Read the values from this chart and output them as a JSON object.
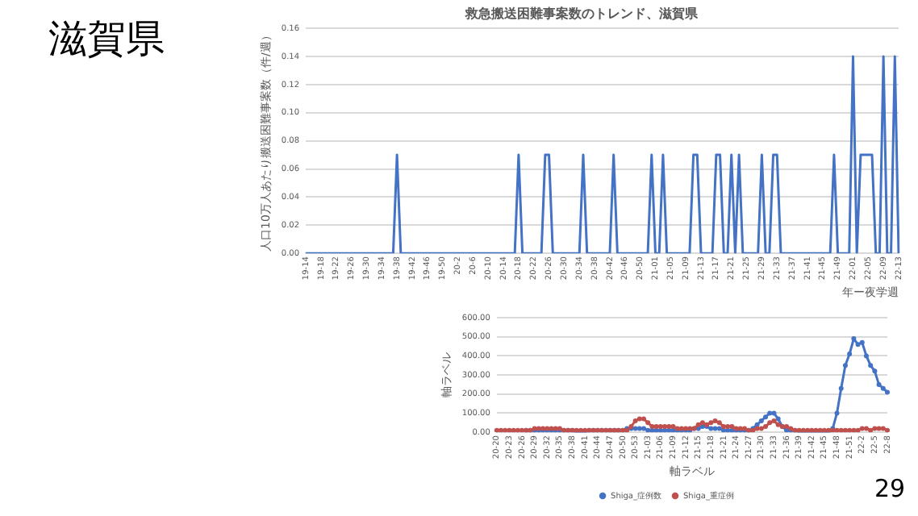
{
  "chart_data": [
    {
      "type": "line",
      "title": "救急搬送困難事案数のトレンド、滋賀県",
      "xlabel": "年ー夜学週",
      "ylabel": "人口10万人あたり搬送困難事案数（件/週）",
      "annotations": [
        "滋賀県"
      ],
      "categories": [
        "19-14",
        null,
        null,
        null,
        "19-18",
        null,
        null,
        null,
        "19-22",
        null,
        null,
        null,
        "19-26",
        null,
        null,
        null,
        "19-30",
        null,
        null,
        null,
        "19-34",
        null,
        null,
        null,
        "19-38",
        null,
        null,
        null,
        "19-42",
        null,
        null,
        null,
        "19-46",
        null,
        null,
        null,
        "19-50",
        null,
        null,
        null,
        "20-2",
        null,
        null,
        null,
        "20-6",
        null,
        null,
        null,
        "20-10",
        null,
        null,
        null,
        "20-14",
        null,
        null,
        null,
        "20-18",
        null,
        null,
        null,
        "20-22",
        null,
        null,
        null,
        "20-26",
        null,
        null,
        null,
        "20-30",
        null,
        null,
        null,
        "20-34",
        null,
        null,
        null,
        "20-38",
        null,
        null,
        null,
        "20-42",
        null,
        null,
        null,
        "20-46",
        null,
        null,
        null,
        "20-50",
        null,
        null,
        null,
        "21-01",
        null,
        null,
        null,
        "21-05",
        null,
        null,
        null,
        "21-09",
        null,
        null,
        null,
        "21-13",
        null,
        null,
        null,
        "21-17",
        null,
        null,
        null,
        "21-21",
        null,
        null,
        null,
        "21-25",
        null,
        null,
        null,
        "21-29",
        null,
        null,
        null,
        "21-33",
        null,
        null,
        null,
        "21-37",
        null,
        null,
        null,
        "21-41",
        null,
        null,
        null,
        "21-45",
        null,
        null,
        null,
        "21-49",
        null,
        null,
        null,
        "22-01",
        null,
        null,
        null,
        "22-05",
        null,
        null,
        null,
        "22-09",
        null,
        null,
        null,
        "22-13"
      ],
      "series": [
        {
          "color": "#4472c4",
          "values": [
            0,
            0,
            0,
            0,
            0,
            0,
            0,
            0,
            0,
            0,
            0,
            0,
            0,
            0,
            0,
            0,
            0,
            0,
            0,
            0,
            0,
            0,
            0,
            0,
            0.07,
            0,
            0,
            0,
            0,
            0,
            0,
            0,
            0,
            0,
            0,
            0,
            0,
            0,
            0,
            0,
            0,
            0,
            0,
            0,
            0,
            0,
            0,
            0,
            0,
            0,
            0,
            0,
            0,
            0,
            0,
            0,
            0.07,
            0,
            0,
            0,
            0,
            0,
            0,
            0.07,
            0.07,
            0,
            0,
            0,
            0,
            0,
            0,
            0,
            0,
            0.07,
            0,
            0,
            0,
            0,
            0,
            0,
            0,
            0.07,
            0,
            0,
            0,
            0,
            0,
            0,
            0,
            0,
            0,
            0.07,
            0,
            0,
            0.07,
            0,
            0,
            0,
            0,
            0,
            0,
            0,
            0.07,
            0.07,
            0,
            0,
            0,
            0,
            0.07,
            0.07,
            0,
            0,
            0.07,
            0,
            0.07,
            0,
            0,
            0,
            0,
            0,
            0.07,
            0,
            0,
            0.07,
            0.07,
            0,
            0,
            0,
            0,
            0,
            0,
            0,
            0,
            0,
            0,
            0,
            0,
            0,
            0,
            0.07,
            0,
            0,
            0,
            0,
            0.14,
            0,
            0.07,
            0.07,
            0.07,
            0.07,
            0,
            0,
            0.14,
            0,
            0,
            0.14,
            0
          ]
        }
      ],
      "ylim": [
        0,
        0.16
      ],
      "yticks": [
        {
          "value": 0,
          "label": "0.00"
        },
        {
          "value": 0.02,
          "label": "0.02"
        },
        {
          "value": 0.04,
          "label": "0.04"
        },
        {
          "value": 0.06,
          "label": "0.06"
        },
        {
          "value": 0.08,
          "label": "0.08"
        },
        {
          "value": 0.1,
          "label": "0.10"
        },
        {
          "value": 0.12,
          "label": "0.12"
        },
        {
          "value": 0.14,
          "label": "0.14"
        },
        {
          "value": 0.16,
          "label": "0.16"
        }
      ],
      "grid": "y",
      "legend": false,
      "marker": "none"
    },
    {
      "type": "line",
      "xlabel": "軸ラベル",
      "ylabel": "軸ラベル",
      "annotations": [
        "29"
      ],
      "categories": [
        "20-20",
        null,
        null,
        "20-23",
        null,
        null,
        "20-26",
        null,
        null,
        "20-29",
        null,
        null,
        "20-32",
        null,
        null,
        "20-35",
        null,
        null,
        "20-38",
        null,
        null,
        "20-41",
        null,
        null,
        "20-44",
        null,
        null,
        "20-47",
        null,
        null,
        "20-50",
        null,
        null,
        "20-53",
        null,
        null,
        "21-03",
        null,
        null,
        "21-06",
        null,
        null,
        "21-09",
        null,
        null,
        "21-12",
        null,
        null,
        "21-15",
        null,
        null,
        "21-18",
        null,
        null,
        "21-21",
        null,
        null,
        "21-24",
        null,
        null,
        "21-27",
        null,
        null,
        "21-30",
        null,
        null,
        "21-33",
        null,
        null,
        "21-36",
        null,
        null,
        "21-39",
        null,
        null,
        "21-42",
        null,
        null,
        "21-45",
        null,
        null,
        "21-48",
        null,
        null,
        "21-51",
        null,
        null,
        "22-2",
        null,
        null,
        "22-5",
        null,
        null,
        "22-8"
      ],
      "series": [
        {
          "name": "Shiga_症例数",
          "color": "#4472c4",
          "values": [
            null,
            null,
            null,
            null,
            null,
            null,
            null,
            10,
            10,
            10,
            10,
            10,
            10,
            10,
            10,
            10,
            10,
            10,
            10,
            0,
            0,
            0,
            10,
            10,
            10,
            10,
            10,
            10,
            10,
            10,
            10,
            20,
            20,
            20,
            20,
            20,
            10,
            10,
            10,
            10,
            10,
            10,
            10,
            10,
            10,
            10,
            10,
            20,
            20,
            30,
            30,
            20,
            20,
            20,
            10,
            10,
            10,
            10,
            10,
            10,
            10,
            20,
            40,
            60,
            80,
            100,
            100,
            70,
            30,
            10,
            10,
            10,
            0,
            0,
            0,
            0,
            0,
            0,
            0,
            0,
            20,
            100,
            230,
            350,
            410,
            490,
            460,
            470,
            400,
            350,
            320,
            250,
            230,
            210
          ]
        },
        {
          "name": "Shiga_重症例",
          "color": "#c0504d",
          "values": [
            10,
            10,
            10,
            10,
            10,
            10,
            10,
            10,
            10,
            20,
            20,
            20,
            20,
            20,
            20,
            20,
            10,
            10,
            10,
            10,
            10,
            10,
            10,
            10,
            10,
            10,
            10,
            10,
            10,
            10,
            10,
            10,
            30,
            60,
            70,
            70,
            50,
            30,
            30,
            30,
            30,
            30,
            30,
            20,
            20,
            20,
            20,
            20,
            40,
            50,
            40,
            50,
            60,
            50,
            30,
            30,
            30,
            20,
            20,
            20,
            10,
            10,
            20,
            20,
            30,
            50,
            60,
            40,
            30,
            30,
            20,
            10,
            10,
            10,
            10,
            10,
            10,
            10,
            10,
            10,
            10,
            10,
            10,
            10,
            10,
            10,
            10,
            20,
            20,
            10,
            20,
            20,
            20,
            10
          ]
        }
      ],
      "ylim": [
        0,
        600
      ],
      "yticks": [
        {
          "value": 0,
          "label": "0.00"
        },
        {
          "value": 100,
          "label": "100.00"
        },
        {
          "value": 200,
          "label": "200.00"
        },
        {
          "value": 300,
          "label": "300.00"
        },
        {
          "value": 400,
          "label": "400.00"
        },
        {
          "value": 500,
          "label": "500.00"
        },
        {
          "value": 600,
          "label": "600.00"
        }
      ],
      "grid": "y",
      "legend": "bottom",
      "marker": "circle"
    }
  ]
}
